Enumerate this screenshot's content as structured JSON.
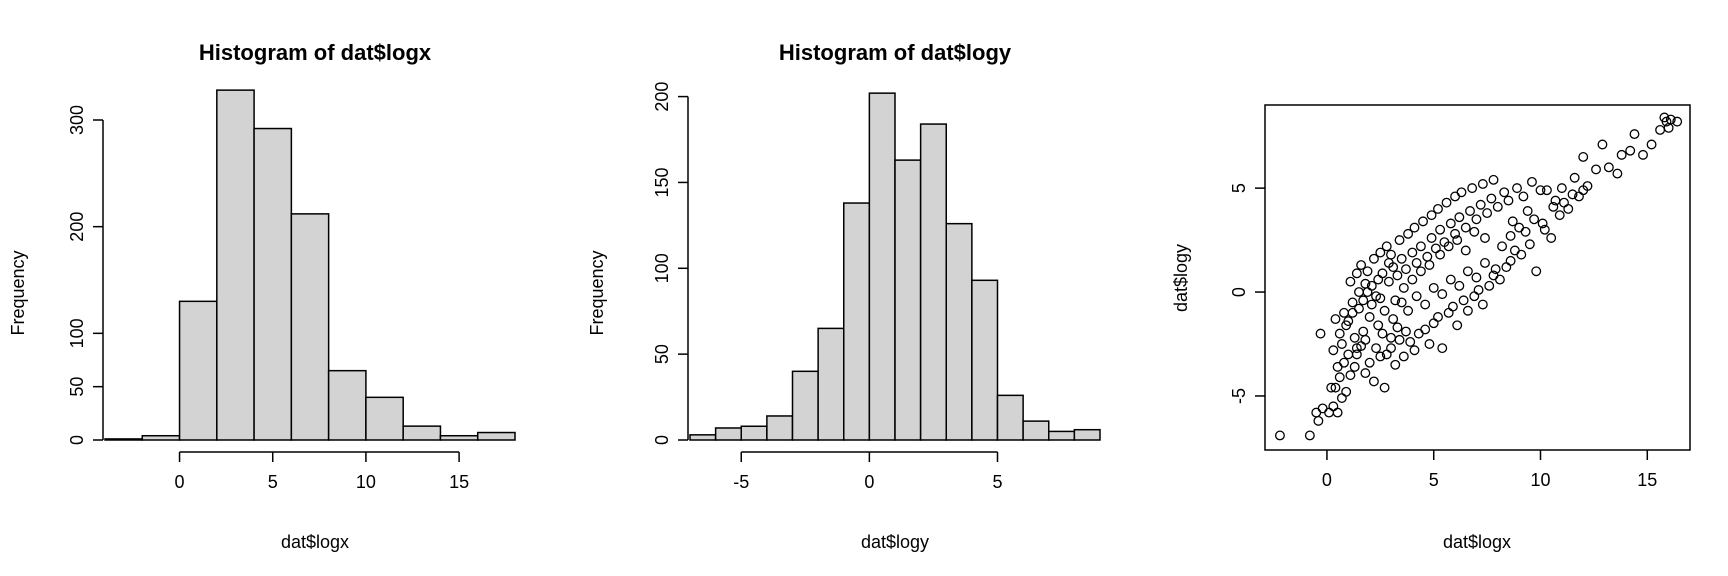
{
  "chart_data": [
    {
      "type": "bar",
      "subtype": "histogram",
      "title": "Histogram of dat$logx",
      "xlabel": "dat$logx",
      "ylabel": "Frequency",
      "bin_edges": [
        -4,
        -2,
        0,
        2,
        4,
        6,
        8,
        10,
        12,
        14,
        16,
        18
      ],
      "values": [
        1,
        4,
        130,
        328,
        292,
        212,
        65,
        40,
        13,
        4,
        7
      ],
      "xlim": [
        -4,
        18
      ],
      "ylim": [
        0,
        330
      ],
      "xticks": [
        0,
        5,
        10,
        15
      ],
      "yticks": [
        0,
        50,
        100,
        200,
        300
      ]
    },
    {
      "type": "bar",
      "subtype": "histogram",
      "title": "Histogram of dat$logy",
      "xlabel": "dat$logy",
      "ylabel": "Frequency",
      "bin_edges": [
        -7,
        -6,
        -5,
        -4,
        -3,
        -2,
        -1,
        0,
        1,
        2,
        3,
        4,
        5,
        6,
        7,
        8,
        9
      ],
      "values": [
        3,
        7,
        8,
        14,
        40,
        65,
        138,
        202,
        163,
        184,
        126,
        93,
        26,
        11,
        5,
        6
      ],
      "xlim": [
        -7,
        9
      ],
      "ylim": [
        0,
        205
      ],
      "xticks": [
        -5,
        0,
        5
      ],
      "yticks": [
        0,
        50,
        100,
        150,
        200
      ]
    },
    {
      "type": "scatter",
      "title": "",
      "xlabel": "dat$logx",
      "ylabel": "dat$logy",
      "xlim": [
        -2.9,
        17
      ],
      "ylim": [
        -7.6,
        9
      ],
      "xticks": [
        0,
        5,
        10,
        15
      ],
      "yticks": [
        -5,
        0,
        5
      ],
      "points": [
        [
          -2.2,
          -6.9
        ],
        [
          -0.8,
          -6.9
        ],
        [
          -0.5,
          -5.8
        ],
        [
          -0.4,
          -6.2
        ],
        [
          -0.2,
          -5.6
        ],
        [
          0.1,
          -5.8
        ],
        [
          0.3,
          -5.5
        ],
        [
          0.5,
          -5.8
        ],
        [
          0.2,
          -4.6
        ],
        [
          0.4,
          -4.6
        ],
        [
          0.7,
          -5.1
        ],
        [
          0.6,
          -4.1
        ],
        [
          0.9,
          -4.8
        ],
        [
          0.5,
          -3.6
        ],
        [
          0.8,
          -3.4
        ],
        [
          1.1,
          -4.0
        ],
        [
          1.4,
          -3.0
        ],
        [
          1.6,
          -2.6
        ],
        [
          1.3,
          -3.6
        ],
        [
          1.8,
          -3.9
        ],
        [
          2.0,
          -3.4
        ],
        [
          2.2,
          -4.3
        ],
        [
          2.5,
          -3.1
        ],
        [
          2.7,
          -4.6
        ],
        [
          2.8,
          -3.0
        ],
        [
          3.0,
          -2.7
        ],
        [
          3.2,
          -3.5
        ],
        [
          3.4,
          -2.3
        ],
        [
          3.6,
          -3.1
        ],
        [
          3.9,
          -2.4
        ],
        [
          4.1,
          -2.8
        ],
        [
          4.3,
          -2.0
        ],
        [
          4.6,
          -1.8
        ],
        [
          4.8,
          -2.5
        ],
        [
          5.0,
          -1.5
        ],
        [
          5.2,
          -1.2
        ],
        [
          5.4,
          -2.7
        ],
        [
          5.7,
          -1.0
        ],
        [
          5.9,
          -0.7
        ],
        [
          6.1,
          -1.6
        ],
        [
          6.4,
          -0.4
        ],
        [
          6.6,
          -0.9
        ],
        [
          6.9,
          -0.2
        ],
        [
          7.1,
          0.1
        ],
        [
          7.3,
          -0.6
        ],
        [
          7.6,
          0.3
        ],
        [
          7.8,
          0.8
        ],
        [
          8.1,
          0.6
        ],
        [
          8.4,
          1.2
        ],
        [
          8.6,
          1.5
        ],
        [
          8.8,
          2.0
        ],
        [
          9.1,
          1.8
        ],
        [
          9.5,
          2.3
        ],
        [
          9.8,
          1.0
        ],
        [
          10.2,
          3.0
        ],
        [
          10.5,
          2.6
        ],
        [
          10.9,
          3.7
        ],
        [
          11.3,
          4.0
        ],
        [
          11.8,
          4.6
        ],
        [
          12.2,
          5.1
        ],
        [
          12.6,
          5.9
        ],
        [
          13.2,
          6.0
        ],
        [
          13.6,
          5.7
        ],
        [
          14.2,
          6.8
        ],
        [
          14.8,
          6.6
        ],
        [
          15.2,
          7.1
        ],
        [
          15.6,
          7.8
        ],
        [
          15.9,
          8.2
        ],
        [
          16.1,
          8.3
        ],
        [
          16.4,
          8.2
        ],
        [
          15.8,
          8.4
        ],
        [
          16.0,
          7.9
        ],
        [
          14.4,
          7.6
        ],
        [
          13.8,
          6.6
        ],
        [
          12.9,
          7.1
        ],
        [
          12.0,
          6.5
        ],
        [
          11.6,
          5.5
        ],
        [
          11.0,
          5.0
        ],
        [
          10.7,
          4.4
        ],
        [
          10.3,
          4.9
        ],
        [
          1.0,
          -1.4
        ],
        [
          1.2,
          -1.0
        ],
        [
          1.5,
          -0.8
        ],
        [
          1.7,
          -0.4
        ],
        [
          1.9,
          0.0
        ],
        [
          2.1,
          0.3
        ],
        [
          2.3,
          -0.2
        ],
        [
          2.4,
          0.6
        ],
        [
          2.6,
          0.9
        ],
        [
          2.9,
          0.5
        ],
        [
          3.1,
          1.2
        ],
        [
          3.3,
          0.8
        ],
        [
          3.5,
          1.6
        ],
        [
          3.7,
          1.1
        ],
        [
          4.0,
          1.9
        ],
        [
          4.2,
          1.4
        ],
        [
          4.4,
          2.2
        ],
        [
          4.7,
          1.7
        ],
        [
          4.9,
          2.6
        ],
        [
          5.1,
          2.1
        ],
        [
          5.3,
          3.0
        ],
        [
          5.5,
          2.4
        ],
        [
          5.8,
          3.3
        ],
        [
          6.0,
          2.8
        ],
        [
          6.2,
          3.6
        ],
        [
          6.5,
          3.1
        ],
        [
          6.7,
          3.9
        ],
        [
          7.0,
          3.5
        ],
        [
          7.2,
          4.2
        ],
        [
          7.5,
          3.8
        ],
        [
          7.7,
          4.5
        ],
        [
          8.0,
          4.1
        ],
        [
          8.3,
          4.8
        ],
        [
          8.5,
          4.4
        ],
        [
          8.9,
          5.0
        ],
        [
          9.2,
          4.6
        ],
        [
          9.6,
          5.3
        ],
        [
          10.0,
          4.9
        ],
        [
          9.4,
          3.9
        ],
        [
          8.7,
          3.4
        ],
        [
          1.1,
          0.5
        ],
        [
          1.4,
          0.9
        ],
        [
          1.6,
          1.3
        ],
        [
          1.9,
          1.0
        ],
        [
          2.2,
          1.6
        ],
        [
          2.5,
          1.9
        ],
        [
          2.8,
          2.2
        ],
        [
          3.0,
          1.8
        ],
        [
          3.4,
          2.5
        ],
        [
          3.8,
          2.8
        ],
        [
          4.1,
          3.1
        ],
        [
          4.5,
          3.4
        ],
        [
          4.9,
          3.7
        ],
        [
          5.2,
          4.0
        ],
        [
          5.6,
          4.3
        ],
        [
          6.0,
          4.6
        ],
        [
          6.3,
          4.8
        ],
        [
          6.8,
          5.0
        ],
        [
          7.3,
          5.2
        ],
        [
          7.8,
          5.4
        ],
        [
          0.6,
          -2.0
        ],
        [
          0.9,
          -1.6
        ],
        [
          1.3,
          -2.2
        ],
        [
          1.7,
          -1.9
        ],
        [
          2.0,
          -1.2
        ],
        [
          2.4,
          -1.6
        ],
        [
          2.7,
          -0.9
        ],
        [
          3.1,
          -1.3
        ],
        [
          3.5,
          -0.5
        ],
        [
          3.8,
          -0.9
        ],
        [
          4.2,
          -0.2
        ],
        [
          4.6,
          -0.6
        ],
        [
          5.0,
          0.2
        ],
        [
          5.4,
          -0.1
        ],
        [
          5.8,
          0.6
        ],
        [
          6.2,
          0.3
        ],
        [
          6.6,
          1.0
        ],
        [
          7.0,
          0.7
        ],
        [
          7.4,
          1.4
        ],
        [
          7.9,
          1.1
        ],
        [
          8.2,
          2.2
        ],
        [
          8.6,
          2.7
        ],
        [
          9.0,
          3.1
        ],
        [
          9.3,
          2.9
        ],
        [
          9.7,
          3.5
        ],
        [
          10.1,
          3.3
        ],
        [
          10.6,
          4.1
        ],
        [
          11.1,
          4.3
        ],
        [
          11.5,
          4.7
        ],
        [
          12.0,
          4.9
        ],
        [
          0.3,
          -2.8
        ],
        [
          0.7,
          -2.5
        ],
        [
          1.0,
          -3.0
        ],
        [
          1.4,
          -2.7
        ],
        [
          1.8,
          -2.3
        ],
        [
          2.3,
          -2.7
        ],
        [
          2.6,
          -2.0
        ],
        [
          3.0,
          -2.2
        ],
        [
          3.3,
          -1.7
        ],
        [
          3.7,
          -1.9
        ],
        [
          -0.3,
          -2.0
        ],
        [
          0.4,
          -1.3
        ],
        [
          0.8,
          -1.0
        ],
        [
          1.2,
          -0.5
        ],
        [
          1.5,
          0.0
        ],
        [
          1.8,
          0.4
        ],
        [
          2.1,
          -0.6
        ],
        [
          2.5,
          -0.3
        ],
        [
          2.9,
          1.4
        ],
        [
          3.2,
          -0.4
        ],
        [
          3.6,
          0.2
        ],
        [
          4.0,
          0.6
        ],
        [
          4.4,
          1.0
        ],
        [
          4.8,
          1.3
        ],
        [
          5.3,
          1.8
        ],
        [
          5.7,
          2.2
        ],
        [
          6.1,
          2.5
        ],
        [
          6.5,
          2.0
        ],
        [
          6.9,
          2.9
        ],
        [
          7.4,
          2.6
        ]
      ]
    }
  ]
}
